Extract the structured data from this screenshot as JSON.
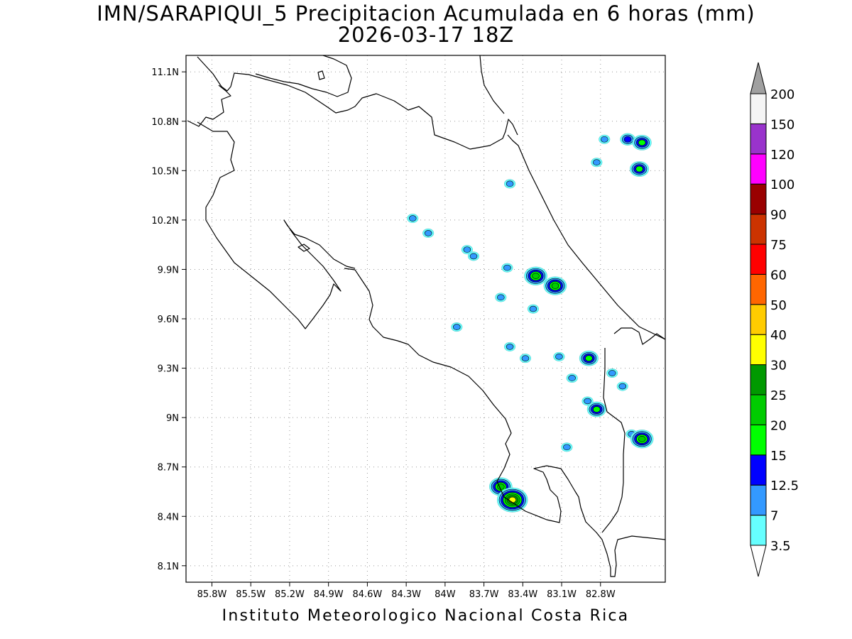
{
  "title_line1": "IMN/SARAPIQUI_5 Precipitacion Acumulada en 6 horas (mm)",
  "title_line2": "2026-03-17 18Z",
  "credit": "Instituto Meteorologico Nacional Costa Rica",
  "map": {
    "lon_range": [
      -86.0,
      -82.3
    ],
    "lat_range": [
      8.0,
      11.2
    ],
    "lon_ticks": [
      {
        "value": -85.8,
        "label": "85.8W"
      },
      {
        "value": -85.5,
        "label": "85.5W"
      },
      {
        "value": -85.2,
        "label": "85.2W"
      },
      {
        "value": -84.9,
        "label": "84.9W"
      },
      {
        "value": -84.6,
        "label": "84.6W"
      },
      {
        "value": -84.3,
        "label": "84.3W"
      },
      {
        "value": -84.0,
        "label": "84W"
      },
      {
        "value": -83.7,
        "label": "83.7W"
      },
      {
        "value": -83.4,
        "label": "83.4W"
      },
      {
        "value": -83.1,
        "label": "83.1W"
      },
      {
        "value": -82.8,
        "label": "82.8W"
      }
    ],
    "lat_ticks": [
      {
        "value": 11.1,
        "label": "11.1N"
      },
      {
        "value": 10.8,
        "label": "10.8N"
      },
      {
        "value": 10.5,
        "label": "10.5N"
      },
      {
        "value": 10.2,
        "label": "10.2N"
      },
      {
        "value": 9.9,
        "label": "9.9N"
      },
      {
        "value": 9.6,
        "label": "9.6N"
      },
      {
        "value": 9.3,
        "label": "9.3N"
      },
      {
        "value": 9.0,
        "label": "9N"
      },
      {
        "value": 8.7,
        "label": "8.7N"
      },
      {
        "value": 8.4,
        "label": "8.4N"
      },
      {
        "value": 8.1,
        "label": "8.1N"
      }
    ],
    "grid": true
  },
  "colorbar": {
    "units": "mm",
    "levels": [
      "3.5",
      "7",
      "12.5",
      "15",
      "20",
      "25",
      "30",
      "40",
      "50",
      "60",
      "75",
      "90",
      "100",
      "120",
      "150",
      "200"
    ],
    "colors": [
      "#66ffff",
      "#3399ff",
      "#0000ff",
      "#00ff00",
      "#00cc00",
      "#009900",
      "#ffff00",
      "#ffcc00",
      "#ff6600",
      "#ff0000",
      "#cc3300",
      "#990000",
      "#ff00ff",
      "#9933cc",
      "#f5f5f5"
    ],
    "below_color": "#ffffff",
    "above_color": "#a0a0a0"
  },
  "precip_cells": [
    {
      "lon": -82.77,
      "lat": 10.69,
      "level": 1
    },
    {
      "lon": -82.59,
      "lat": 10.69,
      "level": 2
    },
    {
      "lon": -82.48,
      "lat": 10.67,
      "level": 3
    },
    {
      "lon": -82.5,
      "lat": 10.51,
      "level": 3
    },
    {
      "lon": -82.83,
      "lat": 10.55,
      "level": 1
    },
    {
      "lon": -83.5,
      "lat": 10.42,
      "level": 1
    },
    {
      "lon": -84.25,
      "lat": 10.21,
      "level": 1
    },
    {
      "lon": -84.13,
      "lat": 10.12,
      "level": 1
    },
    {
      "lon": -83.83,
      "lat": 10.02,
      "level": 1
    },
    {
      "lon": -83.78,
      "lat": 9.98,
      "level": 1
    },
    {
      "lon": -83.52,
      "lat": 9.91,
      "level": 1
    },
    {
      "lon": -83.3,
      "lat": 9.86,
      "level": 4
    },
    {
      "lon": -83.15,
      "lat": 9.8,
      "level": 4
    },
    {
      "lon": -83.57,
      "lat": 9.73,
      "level": 1
    },
    {
      "lon": -83.32,
      "lat": 9.66,
      "level": 1
    },
    {
      "lon": -83.91,
      "lat": 9.55,
      "level": 1
    },
    {
      "lon": -83.5,
      "lat": 9.43,
      "level": 1
    },
    {
      "lon": -83.38,
      "lat": 9.36,
      "level": 1
    },
    {
      "lon": -83.12,
      "lat": 9.37,
      "level": 1
    },
    {
      "lon": -83.02,
      "lat": 9.24,
      "level": 1
    },
    {
      "lon": -82.89,
      "lat": 9.36,
      "level": 3
    },
    {
      "lon": -82.71,
      "lat": 9.27,
      "level": 1
    },
    {
      "lon": -82.63,
      "lat": 9.19,
      "level": 1
    },
    {
      "lon": -82.9,
      "lat": 9.1,
      "level": 1
    },
    {
      "lon": -82.83,
      "lat": 9.05,
      "level": 3
    },
    {
      "lon": -82.56,
      "lat": 8.9,
      "level": 1
    },
    {
      "lon": -82.48,
      "lat": 8.87,
      "level": 4
    },
    {
      "lon": -83.06,
      "lat": 8.82,
      "level": 1
    },
    {
      "lon": -83.57,
      "lat": 8.58,
      "level": 4
    },
    {
      "lon": -83.48,
      "lat": 8.5,
      "level": 6
    }
  ]
}
